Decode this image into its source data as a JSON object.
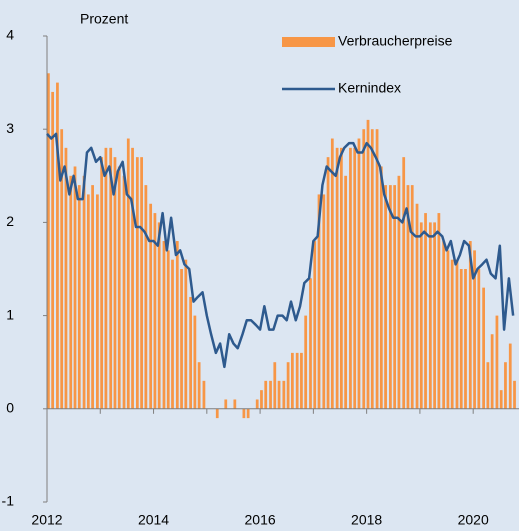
{
  "chart_data": {
    "type": "bar-line",
    "y_axis_label": "Prozent",
    "x": [
      2012.0,
      2012.08,
      2012.17,
      2012.25,
      2012.33,
      2012.42,
      2012.5,
      2012.58,
      2012.67,
      2012.75,
      2012.83,
      2012.92,
      2013.0,
      2013.08,
      2013.17,
      2013.25,
      2013.33,
      2013.42,
      2013.5,
      2013.58,
      2013.67,
      2013.75,
      2013.83,
      2013.92,
      2014.0,
      2014.08,
      2014.17,
      2014.25,
      2014.33,
      2014.42,
      2014.5,
      2014.58,
      2014.67,
      2014.75,
      2014.83,
      2014.92,
      2015.0,
      2015.08,
      2015.17,
      2015.25,
      2015.33,
      2015.42,
      2015.5,
      2015.58,
      2015.67,
      2015.75,
      2015.83,
      2015.92,
      2016.0,
      2016.08,
      2016.17,
      2016.25,
      2016.33,
      2016.42,
      2016.5,
      2016.58,
      2016.67,
      2016.75,
      2016.83,
      2016.92,
      2017.0,
      2017.08,
      2017.17,
      2017.25,
      2017.33,
      2017.42,
      2017.5,
      2017.58,
      2017.67,
      2017.75,
      2017.83,
      2017.92,
      2018.0,
      2018.08,
      2018.17,
      2018.25,
      2018.33,
      2018.42,
      2018.5,
      2018.58,
      2018.67,
      2018.75,
      2018.83,
      2018.92,
      2019.0,
      2019.08,
      2019.17,
      2019.25,
      2019.33,
      2019.42,
      2019.5,
      2019.58,
      2019.67,
      2019.75,
      2019.83,
      2019.92,
      2020.0,
      2020.08,
      2020.17,
      2020.25,
      2020.33,
      2020.42,
      2020.5,
      2020.58,
      2020.67,
      2020.75
    ],
    "series": [
      {
        "name": "Verbraucherpreise",
        "kind": "bar",
        "color": "#f79646",
        "values": [
          3.6,
          3.4,
          3.5,
          3.0,
          2.8,
          2.5,
          2.6,
          2.4,
          2.5,
          2.3,
          2.4,
          2.3,
          2.7,
          2.8,
          2.8,
          2.7,
          2.6,
          2.5,
          2.9,
          2.8,
          2.7,
          2.7,
          2.4,
          2.2,
          2.1,
          2.0,
          1.8,
          1.7,
          1.6,
          1.8,
          1.5,
          1.6,
          1.2,
          1.0,
          0.5,
          0.3,
          0.0,
          0.0,
          -0.1,
          0.0,
          0.1,
          0.0,
          0.1,
          0.0,
          -0.1,
          -0.1,
          0.0,
          0.1,
          0.2,
          0.3,
          0.3,
          0.5,
          0.3,
          0.3,
          0.5,
          0.6,
          0.6,
          0.6,
          1.0,
          1.4,
          1.8,
          2.3,
          2.3,
          2.7,
          2.9,
          2.8,
          2.8,
          2.5,
          2.8,
          2.8,
          2.9,
          3.0,
          3.1,
          3.0,
          3.0,
          2.6,
          2.4,
          2.4,
          2.4,
          2.5,
          2.7,
          2.4,
          2.4,
          2.2,
          2.0,
          2.1,
          2.0,
          2.0,
          2.1,
          1.8,
          1.7,
          1.6,
          1.6,
          1.5,
          1.5,
          1.8,
          1.7,
          1.5,
          1.3,
          0.5,
          0.8,
          1.0,
          0.2,
          0.5,
          0.7,
          0.3
        ]
      },
      {
        "name": "Kernindex",
        "kind": "line",
        "color": "#2e5a8e",
        "values": [
          2.95,
          2.9,
          2.95,
          2.45,
          2.6,
          2.3,
          2.5,
          2.25,
          2.25,
          2.75,
          2.8,
          2.65,
          2.7,
          2.5,
          2.6,
          2.3,
          2.55,
          2.65,
          2.3,
          2.25,
          1.95,
          1.95,
          1.9,
          1.8,
          1.8,
          1.75,
          2.1,
          1.7,
          2.05,
          1.65,
          1.7,
          1.55,
          1.5,
          1.15,
          1.2,
          1.25,
          1.0,
          0.8,
          0.6,
          0.7,
          0.45,
          0.8,
          0.7,
          0.65,
          0.8,
          0.95,
          0.95,
          0.9,
          0.85,
          1.1,
          0.85,
          0.85,
          1.0,
          1.0,
          0.95,
          1.15,
          0.95,
          1.1,
          1.35,
          1.4,
          1.8,
          1.85,
          2.4,
          2.6,
          2.55,
          2.5,
          2.7,
          2.8,
          2.85,
          2.85,
          2.75,
          2.75,
          2.85,
          2.8,
          2.7,
          2.6,
          2.3,
          2.15,
          2.05,
          2.05,
          2.0,
          2.15,
          1.9,
          1.85,
          1.85,
          1.9,
          1.85,
          1.85,
          1.9,
          1.85,
          1.7,
          1.8,
          1.55,
          1.65,
          1.8,
          1.75,
          1.4,
          1.5,
          1.55,
          1.6,
          1.45,
          1.4,
          1.75,
          0.85,
          1.4,
          1.0
        ]
      }
    ],
    "xlim": [
      2012,
      2020.86
    ],
    "xticks": [
      2012,
      2014,
      2016,
      2018,
      2020
    ],
    "xminorticks": [
      2013,
      2015,
      2017,
      2019
    ],
    "ylim": [
      -1,
      4
    ],
    "yticks": [
      -1,
      0,
      1,
      2,
      3,
      4
    ],
    "background": "#dce6f2"
  }
}
